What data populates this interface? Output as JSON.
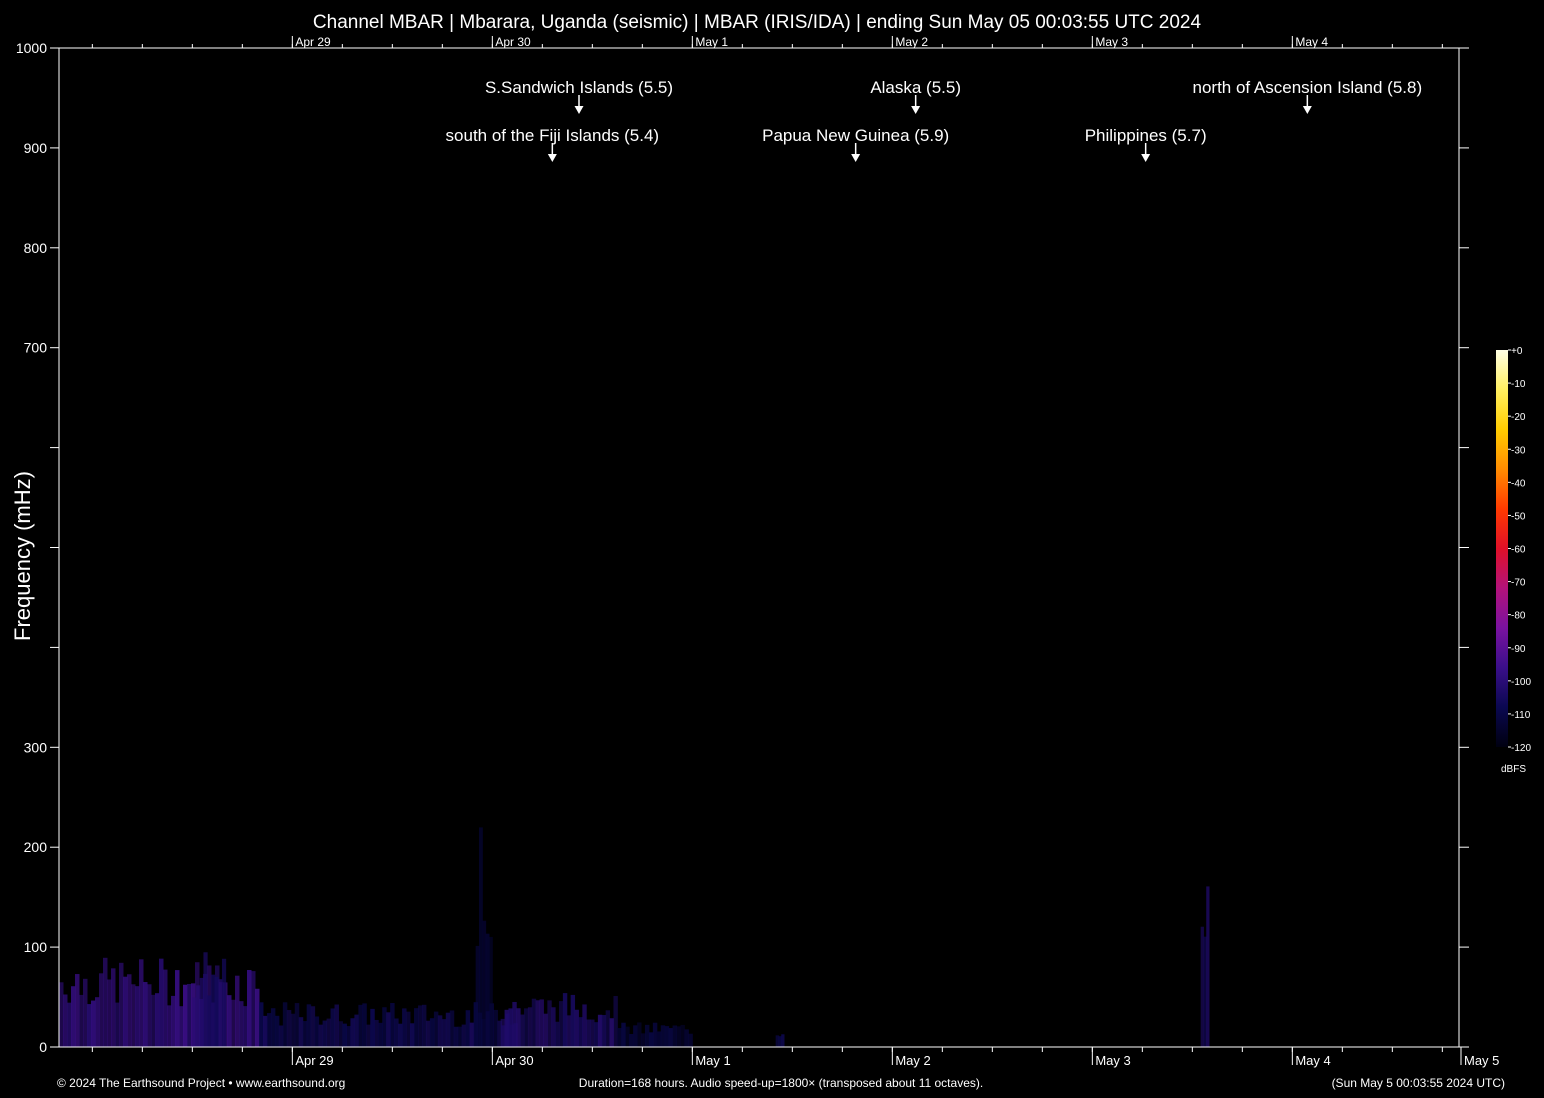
{
  "chart_data": {
    "type": "heatmap",
    "title": "Channel MBAR | Mbarara, Uganda (seismic) | MBAR (IRIS/IDA) | ending Sun May 05 00:03:55 UTC 2024",
    "ylabel": "Frequency (mHz)",
    "xlabel": "",
    "ylim": [
      0,
      1000
    ],
    "y_scale": "linear",
    "y_ticks": [
      {
        "value": 0,
        "label": "0"
      },
      {
        "value": 100,
        "label": "100"
      },
      {
        "value": 200,
        "label": "200"
      },
      {
        "value": 300,
        "label": "300"
      },
      {
        "value": 400,
        "label": ""
      },
      {
        "value": 500,
        "label": ""
      },
      {
        "value": 600,
        "label": ""
      },
      {
        "value": 700,
        "label": "700"
      },
      {
        "value": 800,
        "label": "800"
      },
      {
        "value": 900,
        "label": "900"
      },
      {
        "value": 1000,
        "label": "1000"
      }
    ],
    "x_unit": "hours",
    "xlim": [
      0,
      168
    ],
    "x_major_ticks": [
      {
        "label": "Apr 29",
        "hours": 28.0
      },
      {
        "label": "Apr 30",
        "hours": 52.0
      },
      {
        "label": "May  1",
        "hours": 76.0
      },
      {
        "label": "May  2",
        "hours": 100.0
      },
      {
        "label": "May  3",
        "hours": 124.0
      },
      {
        "label": "May  4",
        "hours": 148.0
      },
      {
        "label": "May  5",
        "hours": 172.0
      }
    ],
    "x_minor_tick_interval_hours": 6,
    "events": [
      {
        "label": "S.Sandwich Islands (5.5)",
        "hours": 62.4,
        "row": 1
      },
      {
        "label": "Alaska (5.5)",
        "hours": 102.8,
        "row": 1
      },
      {
        "label": "north of Ascension Island (5.8)",
        "hours": 149.8,
        "row": 1
      },
      {
        "label": "south of the Fiji Islands (5.4)",
        "hours": 59.2,
        "row": 2
      },
      {
        "label": "Papua New Guinea (5.9)",
        "hours": 95.6,
        "row": 2
      },
      {
        "label": "Philippines (5.7)",
        "hours": 130.4,
        "row": 2
      }
    ],
    "colorbar": {
      "unit": "dBFS",
      "range": [
        -120,
        0
      ],
      "ticks": [
        "+0",
        "-10",
        "-20",
        "-30",
        "-40",
        "-50",
        "-60",
        "-70",
        "-80",
        "-90",
        "-100",
        "-110",
        "-120"
      ],
      "colors": [
        "#000010",
        "#0a0850",
        "#3a0f8a",
        "#7a12a0",
        "#b3127a",
        "#e01028",
        "#ff3a00",
        "#ff8c00",
        "#ffcc00",
        "#ffef60",
        "#ffffe6"
      ]
    },
    "spectral_features": [
      {
        "hours_start": 0,
        "hours_end": 24,
        "freq_max": 90,
        "level_db": -95
      },
      {
        "hours_start": 16,
        "hours_end": 20,
        "freq_max": 100,
        "level_db": -100
      },
      {
        "hours_start": 24,
        "hours_end": 55,
        "freq_max": 45,
        "level_db": -104
      },
      {
        "hours_start": 53,
        "hours_end": 67,
        "freq_max": 55,
        "level_db": -100
      },
      {
        "hours_start": 50,
        "hours_end": 52,
        "freq_max": 220,
        "level_db": -110
      },
      {
        "hours_start": 67,
        "hours_end": 76,
        "freq_max": 25,
        "level_db": -108
      },
      {
        "hours_start": 86,
        "hours_end": 87,
        "freq_max": 20,
        "level_db": -106
      },
      {
        "hours_start": 137,
        "hours_end": 138,
        "freq_max": 220,
        "level_db": -102
      }
    ]
  },
  "footer": {
    "copyright": "© 2024 The Earthsound Project • www.earthsound.org",
    "info": "Duration=168 hours. Audio speed-up=1800× (transposed about 11 octaves).",
    "timestamp": "(Sun May  5 00:03:55 2024 UTC)"
  }
}
